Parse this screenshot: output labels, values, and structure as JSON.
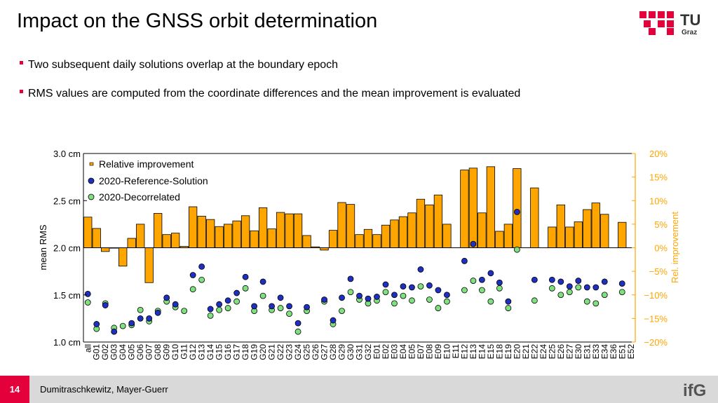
{
  "slide": {
    "title": "Impact on the GNSS orbit determination",
    "bullets": [
      "Two subsequent daily solutions overlap at the boundary epoch",
      "RMS values are computed from the coordinate differences and the mean improvement is evaluated"
    ],
    "logo_text": "TU",
    "logo_subtext": "Graz",
    "page_number": "14",
    "authors": "Dumitraschkewitz, Mayer-Guerr",
    "footer_logo_text": "ifG"
  },
  "colors": {
    "accent": "#e4003a",
    "bar": "#ffa500",
    "reference": "#1f2fbf",
    "decorrelated": "#7fe07f",
    "right_axis": "#ffa500"
  },
  "chart_data": {
    "type": "bar",
    "categories": [
      "all",
      "G01",
      "G02",
      "G03",
      "G04",
      "G05",
      "G06",
      "G07",
      "G08",
      "G09",
      "G10",
      "G11",
      "G12",
      "G13",
      "G14",
      "G15",
      "G16",
      "G17",
      "G18",
      "G19",
      "G20",
      "G21",
      "G22",
      "G23",
      "G24",
      "G25",
      "G26",
      "G27",
      "G28",
      "G29",
      "G30",
      "G31",
      "G32",
      "E01",
      "E02",
      "E03",
      "E04",
      "E05",
      "E07",
      "E08",
      "E09",
      "E10",
      "E11",
      "E12",
      "E13",
      "E14",
      "E15",
      "E18",
      "E19",
      "E20",
      "E21",
      "E22",
      "E24",
      "E25",
      "E26",
      "E27",
      "E30",
      "E31",
      "E33",
      "E34",
      "E36",
      "E51",
      "E52"
    ],
    "ylabel": "mean RMS",
    "y_tick_labels": [
      "1.0 cm",
      "1.5 cm",
      "2.0 cm",
      "2.5 cm",
      "3.0 cm"
    ],
    "ylim": [
      1.0,
      3.0
    ],
    "y2label": "Rel. improvement",
    "y2_tick_labels": [
      "−20%",
      "−15%",
      "−10%",
      "−5%",
      "0%",
      "5%",
      "10%",
      "15%",
      "20%"
    ],
    "y2lim": [
      -20,
      20
    ],
    "legend_position": "top-left",
    "series": [
      {
        "name": "Relative improvement",
        "kind": "bar",
        "axis": "right",
        "values": [
          6.5,
          4.1,
          -0.8,
          0,
          -3.9,
          2,
          5,
          -7.4,
          7.3,
          2.8,
          3.1,
          0.3,
          8.7,
          6.7,
          6,
          4.5,
          5,
          5.7,
          6.8,
          3.6,
          8.5,
          4,
          7.5,
          7.2,
          7.2,
          2.6,
          0.2,
          -0.5,
          3.7,
          9.6,
          9.2,
          2.8,
          3.9,
          2.8,
          4.8,
          5.9,
          6.6,
          7.4,
          10.3,
          9.1,
          11.2,
          5,
          null,
          16.5,
          16.9,
          7.4,
          17.2,
          3.5,
          5,
          16.8,
          null,
          12.7,
          null,
          4.4,
          9.1,
          4.4,
          5.5,
          8.1,
          9.5,
          7.1,
          null,
          5.4,
          null
        ],
        "color": "#ffa500"
      },
      {
        "name": "2020-Reference-Solution",
        "kind": "point",
        "axis": "left",
        "values": [
          1.51,
          1.19,
          1.39,
          1.11,
          null,
          1.2,
          1.25,
          1.25,
          1.31,
          1.47,
          1.4,
          null,
          1.71,
          1.8,
          1.35,
          1.4,
          1.44,
          1.52,
          1.69,
          1.38,
          1.64,
          1.38,
          1.47,
          1.38,
          1.2,
          1.37,
          null,
          1.45,
          1.23,
          1.47,
          1.67,
          1.49,
          1.46,
          1.48,
          1.61,
          1.5,
          1.59,
          1.58,
          1.77,
          1.6,
          1.55,
          1.5,
          null,
          1.86,
          2.04,
          1.66,
          1.73,
          1.63,
          1.43,
          2.38,
          null,
          1.66,
          null,
          1.66,
          1.64,
          1.59,
          1.65,
          1.58,
          1.58,
          1.64,
          null,
          1.62,
          null
        ],
        "color": "#1f2fbf"
      },
      {
        "name": "2020-Decorrelated",
        "kind": "point",
        "axis": "left",
        "values": [
          1.42,
          1.14,
          1.41,
          1.15,
          1.17,
          1.18,
          1.34,
          1.22,
          1.33,
          1.43,
          1.37,
          1.33,
          1.56,
          1.66,
          1.28,
          1.34,
          1.36,
          1.43,
          1.57,
          1.33,
          1.49,
          1.34,
          1.36,
          1.3,
          1.11,
          1.33,
          null,
          1.43,
          1.19,
          1.33,
          1.53,
          1.45,
          1.41,
          1.44,
          1.53,
          1.41,
          1.49,
          1.44,
          1.59,
          1.45,
          1.36,
          1.43,
          null,
          1.55,
          1.65,
          1.55,
          1.43,
          1.57,
          1.36,
          1.98,
          null,
          1.44,
          null,
          1.57,
          1.5,
          1.53,
          1.58,
          1.43,
          1.41,
          1.5,
          null,
          1.53,
          null
        ],
        "color": "#7fe07f"
      }
    ]
  }
}
